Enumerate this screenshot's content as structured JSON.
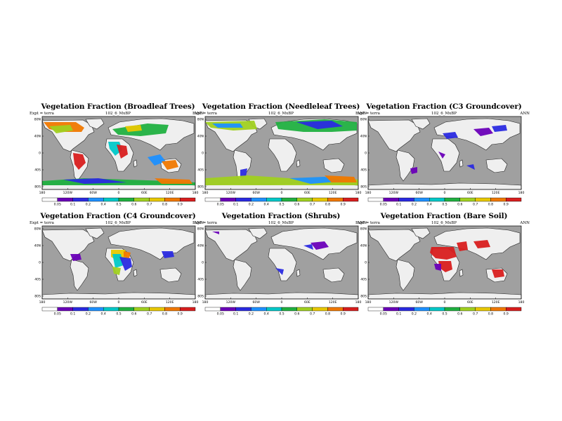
{
  "panels": [
    {
      "id": "broadleaf",
      "title": "Vegetation Fraction (Broadleaf Trees)",
      "subtitle": "102_6_MxBP",
      "expt": "Expt = terra",
      "season": "ANN",
      "colorbar_labels": [
        "0.05",
        "0.1",
        "0.2",
        "0.4",
        "0.5",
        "0.6",
        "0.7",
        "0.8",
        "0.9"
      ],
      "lat_labels": [
        "80N",
        "40N",
        "0",
        "40S",
        "80S"
      ],
      "lon_labels": [
        "180",
        "120W",
        "60W",
        "0",
        "60E",
        "120E",
        "180"
      ]
    },
    {
      "id": "needleleaf",
      "title": "Vegetation Fraction (Needleleaf Trees)",
      "subtitle": "102_6_MxBP",
      "expt": "Expt = terra",
      "season": "ANN",
      "colorbar_labels": [
        "0.05",
        "0.1",
        "0.2",
        "0.4",
        "0.5",
        "0.6",
        "0.7",
        "0.8",
        "0.9"
      ],
      "lat_labels": [
        "80N",
        "40N",
        "0",
        "40S",
        "80S"
      ],
      "lon_labels": [
        "180",
        "120W",
        "60W",
        "0",
        "60E",
        "120E",
        "180"
      ]
    },
    {
      "id": "c3",
      "title": "Vegetation Fraction (C3 Groundcover)",
      "subtitle": "102_6_MxBP",
      "expt": "Expt = terra",
      "season": "ANN",
      "colorbar_labels": [
        "0.05",
        "0.1",
        "0.2",
        "0.4",
        "0.5",
        "0.6",
        "0.7",
        "0.8",
        "0.9"
      ],
      "lat_labels": [
        "80N",
        "40N",
        "0",
        "40S",
        "80S"
      ],
      "lon_labels": [
        "180",
        "120W",
        "60W",
        "0",
        "60E",
        "120E",
        "180"
      ]
    },
    {
      "id": "c4",
      "title": "Vegetation Fraction (C4 Groundcover)",
      "subtitle": "102_6_MxBP",
      "expt": "Expt = terra",
      "season": "ANN",
      "colorbar_labels": [
        "0.05",
        "0.1",
        "0.2",
        "0.4",
        "0.5",
        "0.6",
        "0.7",
        "0.8",
        "0.9"
      ],
      "lat_labels": [
        "80N",
        "40N",
        "0",
        "40S",
        "80S"
      ],
      "lon_labels": [
        "180",
        "120W",
        "60W",
        "0",
        "60E",
        "120E",
        "180"
      ]
    },
    {
      "id": "shrubs",
      "title": "Vegetation Fraction (Shrubs)",
      "subtitle": "102_6_MxBP",
      "expt": "Expt = terra",
      "season": "ANN",
      "colorbar_labels": [
        "0.05",
        "0.1",
        "0.2",
        "0.4",
        "0.5",
        "0.6",
        "0.7",
        "0.8",
        "0.9"
      ],
      "lat_labels": [
        "80N",
        "40N",
        "0",
        "40S",
        "80S"
      ],
      "lon_labels": [
        "180",
        "120W",
        "60W",
        "0",
        "60E",
        "120E",
        "180"
      ]
    },
    {
      "id": "bare",
      "title": "Vegetation Fraction (Bare Soil)",
      "subtitle": "102_6_MxBP",
      "expt": "Expt = terra",
      "season": "ANN",
      "colorbar_labels": [
        "0.05",
        "0.1",
        "0.2",
        "0.4",
        "0.5",
        "0.6",
        "0.7",
        "0.8",
        "0.9"
      ],
      "lat_labels": [
        "80N",
        "40N",
        "0",
        "40S",
        "80S"
      ],
      "lon_labels": [
        "180",
        "120W",
        "60W",
        "0",
        "60E",
        "120E",
        "180"
      ]
    }
  ],
  "colors": {
    "ocean": "#a0a0a0",
    "land_nodata": "#efefef",
    "scale": [
      "#ffffff",
      "#6a00b8",
      "#2a2ae0",
      "#1e90ff",
      "#00c8c8",
      "#20b040",
      "#a0d020",
      "#e8c800",
      "#f07800",
      "#d81e1e"
    ]
  }
}
